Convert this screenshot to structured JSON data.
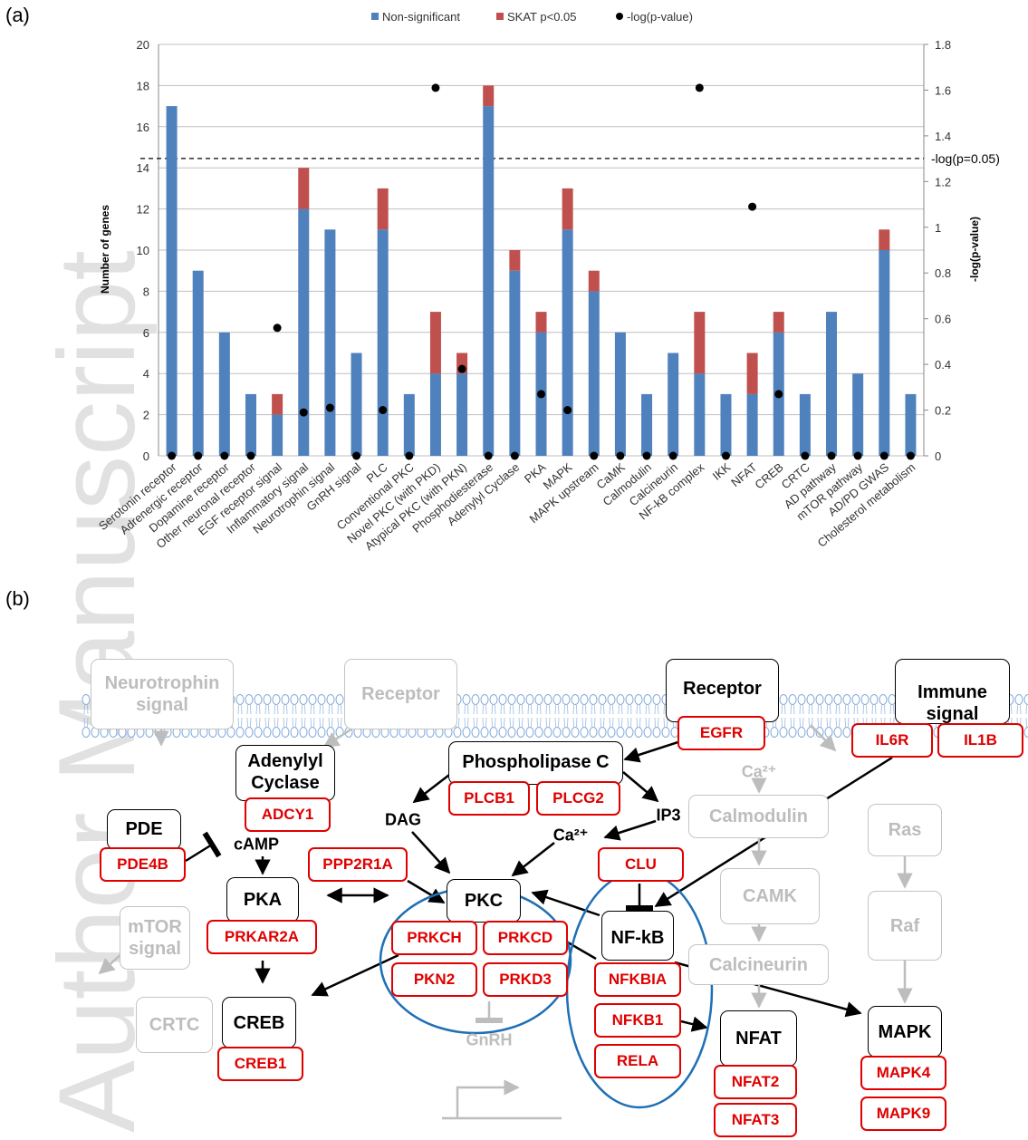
{
  "panel_labels": [
    "(a)",
    "(b)"
  ],
  "watermark": "Author Manuscript",
  "chart_data": {
    "type": "bar",
    "stacked": true,
    "legend": "top",
    "grid": true,
    "ylabel": "Number of genes",
    "y2label": "-log(p-value)",
    "categories": [
      "Serotonin receptor",
      "Adrenergic receptor",
      "Dopamine receptor",
      "Other neuronal receptor",
      "EGF receptor signal",
      "Inflammatory signal",
      "Neurotrophin signal",
      "GnRH signal",
      "PLC",
      "Conventional PKC",
      "Novel PKC (with PKD)",
      "Atypical PKC (with PKN)",
      "Phosphodiesterase",
      "Adenylyl Cyclase",
      "PKA",
      "MAPK",
      "MAPK upstream",
      "CaMK",
      "Calmodulin",
      "Calcineurin",
      "NF-kB complex",
      "IKK",
      "NFAT",
      "CREB",
      "CRTC",
      "AD pathway",
      "mTOR pathway",
      "AD/PD GWAS",
      "Cholesterol metabolism"
    ],
    "series": [
      {
        "name": "Non-significant",
        "color": "#4f81bd",
        "type": "bar",
        "values": [
          17,
          9,
          6,
          3,
          2,
          12,
          11,
          5,
          11,
          3,
          4,
          4,
          17,
          9,
          6,
          11,
          8,
          6,
          3,
          5,
          4,
          3,
          3,
          6,
          3,
          7,
          4,
          10,
          3
        ]
      },
      {
        "name": "SKAT p<0.05",
        "color": "#c0504d",
        "type": "bar",
        "values": [
          0,
          0,
          0,
          0,
          1,
          2,
          0,
          0,
          2,
          0,
          3,
          1,
          1,
          1,
          1,
          2,
          1,
          0,
          0,
          0,
          3,
          0,
          2,
          1,
          0,
          0,
          0,
          1,
          0
        ]
      },
      {
        "name": "-log(p-value)",
        "color": "#000000",
        "type": "scatter",
        "axis": "y2",
        "values": [
          0,
          0,
          0,
          0,
          0.56,
          0.19,
          0.21,
          0,
          0.2,
          0,
          1.61,
          0.38,
          0,
          0,
          0.27,
          0.2,
          0,
          0,
          0,
          0,
          1.61,
          0,
          1.09,
          0.27,
          0,
          0,
          0,
          0,
          0
        ]
      }
    ],
    "ylim": [
      0,
      20
    ],
    "yticks": [
      0,
      2,
      4,
      6,
      8,
      10,
      12,
      14,
      16,
      18,
      20
    ],
    "y2lim": [
      0,
      1.8
    ],
    "y2ticks": [
      0,
      0.2,
      0.4,
      0.6,
      0.8,
      1,
      1.2,
      1.4,
      1.6,
      1.8
    ],
    "threshold_line": {
      "value": 1.301,
      "label": "-log(p=0.05)",
      "axis": "y2"
    }
  },
  "diagram": {
    "nodes": [
      {
        "label": "Neurotrophin signal",
        "active": false
      },
      {
        "label": "Receptor",
        "active": false
      },
      {
        "label": "Receptor",
        "active": true,
        "genes": [
          "EGFR"
        ]
      },
      {
        "label": "Immune signal",
        "active": true,
        "genes": [
          "IL6R",
          "IL1B"
        ]
      },
      {
        "label": "Adenylyl Cyclase",
        "active": true,
        "genes": [
          "ADCY1"
        ]
      },
      {
        "label": "Phospholipase C",
        "active": true,
        "genes": [
          "PLCB1",
          "PLCG2"
        ]
      },
      {
        "label": "Calmodulin",
        "active": false
      },
      {
        "label": "Ras",
        "active": false
      },
      {
        "label": "PDE",
        "active": true,
        "genes": [
          "PDE4B"
        ]
      },
      {
        "label": "CAMK",
        "active": false
      },
      {
        "label": "Raf",
        "active": false
      },
      {
        "label": "PKA",
        "active": true,
        "genes": [
          "PRKAR2A"
        ]
      },
      {
        "label": "PKC",
        "active": true,
        "genes": [
          "PRKCH",
          "PRKCD",
          "PKN2",
          "PRKD3"
        ]
      },
      {
        "label": "NF-kB",
        "active": true,
        "genes": [
          "NFKBIA",
          "NFKB1",
          "RELA"
        ]
      },
      {
        "label": "mTOR signal",
        "active": false
      },
      {
        "label": "Calcineurin",
        "active": false
      },
      {
        "label": "CRTC",
        "active": false
      },
      {
        "label": "CREB",
        "active": true,
        "genes": [
          "CREB1"
        ]
      },
      {
        "label": "NFAT",
        "active": true,
        "genes": [
          "NFAT2",
          "NFAT3"
        ]
      },
      {
        "label": "MAPK",
        "active": true,
        "genes": [
          "MAPK4",
          "MAPK9"
        ]
      }
    ],
    "regulator_genes": [
      "PPP2R1A",
      "CLU"
    ],
    "molecules": [
      {
        "label": "Ca²⁺",
        "active": false
      },
      {
        "label": "DAG",
        "active": true
      },
      {
        "label": "IP3",
        "active": true
      },
      {
        "label": "Ca²⁺",
        "active": true
      },
      {
        "label": "cAMP",
        "active": true
      },
      {
        "label": "GnRH",
        "active": false
      }
    ]
  }
}
